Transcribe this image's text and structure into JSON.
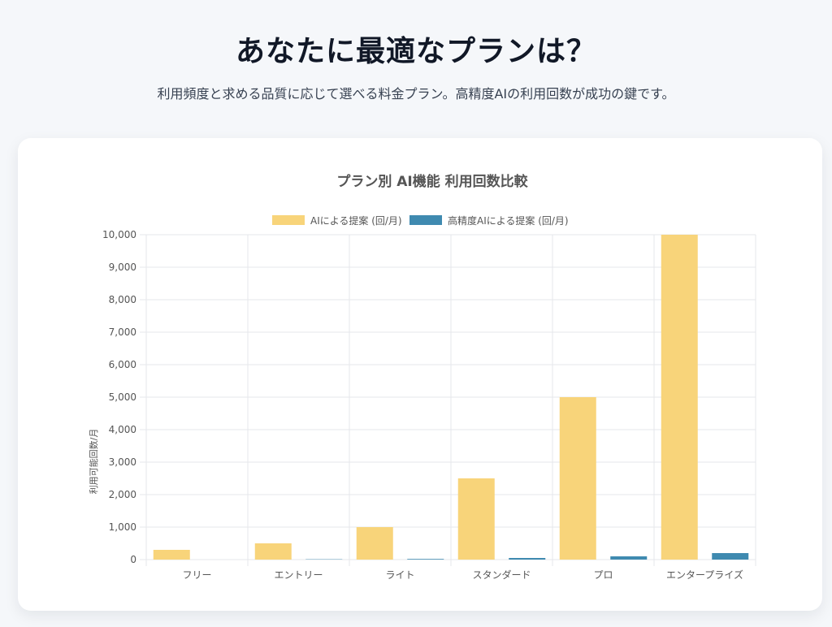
{
  "header": {
    "title": "あなたに最適なプランは？",
    "subtitle": "利用頻度と求める品質に応じて選べる料金プラン。高精度AIの利用回数が成功の鍵です。"
  },
  "colors": {
    "series1": "#f8d47a",
    "series2": "#3f8ab0",
    "grid": "#e5e7eb",
    "text": "#555555"
  },
  "chart_data": {
    "type": "bar",
    "title": "プラン別 AI機能 利用回数比較",
    "ylabel": "利用可能回数/月",
    "xlabel": "",
    "categories": [
      "フリー",
      "エントリー",
      "ライト",
      "スタンダード",
      "プロ",
      "エンタープライズ"
    ],
    "series": [
      {
        "name": "AIによる提案 (回/月)",
        "values": [
          300,
          500,
          1000,
          2500,
          5000,
          10000
        ]
      },
      {
        "name": "高精度AIによる提案 (回/月)",
        "values": [
          0,
          10,
          20,
          50,
          100,
          200
        ]
      }
    ],
    "ylim": [
      0,
      10000
    ],
    "yticks": [
      "0",
      "1,000",
      "2,000",
      "3,000",
      "4,000",
      "5,000",
      "6,000",
      "7,000",
      "8,000",
      "9,000",
      "10,000"
    ],
    "grid": true,
    "legend": "top-center"
  }
}
